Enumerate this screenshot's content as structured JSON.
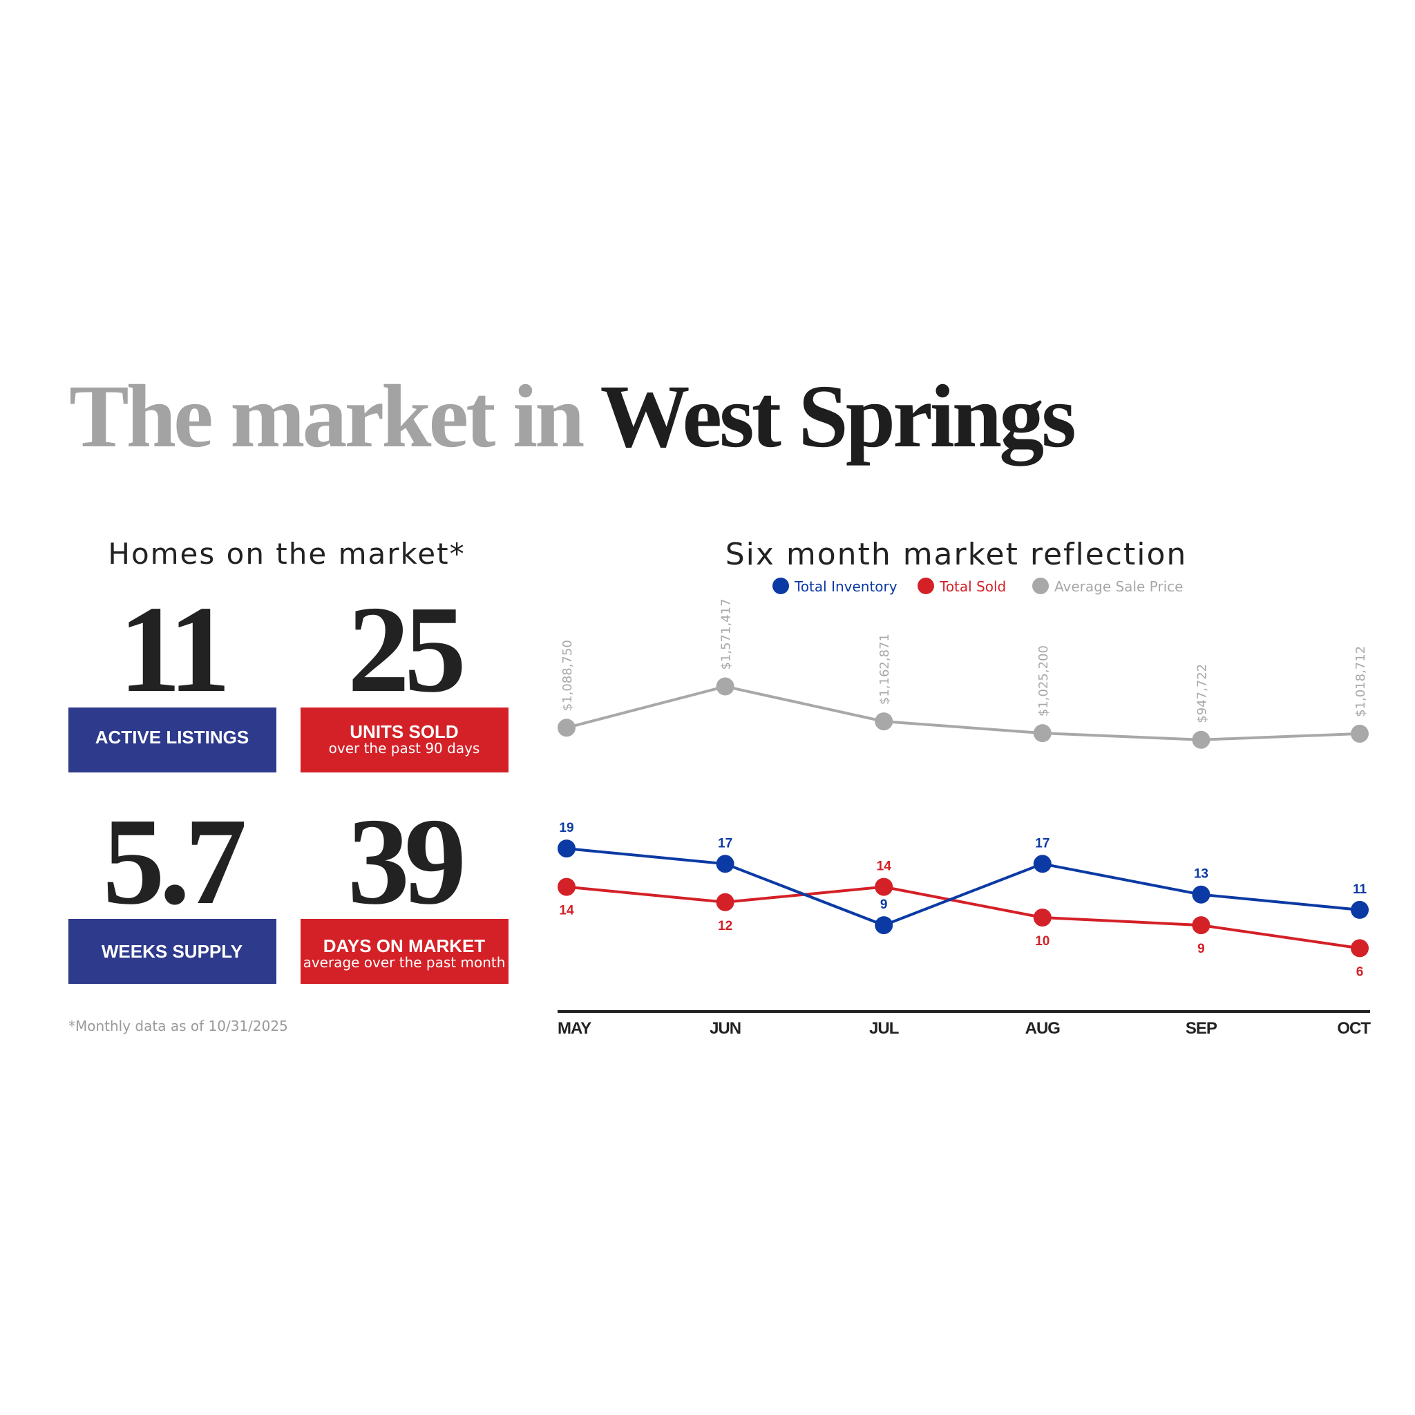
{
  "title": {
    "lead": "The market in",
    "place": "West Springs"
  },
  "stats": {
    "heading": "Homes on the market*",
    "cards": [
      {
        "value": 11,
        "label": "ACTIVE LISTINGS"
      },
      {
        "value": 25,
        "label": "UNITS SOLD",
        "sublabel": "over the past 90 days"
      },
      {
        "value": 5.7,
        "label": "WEEKS SUPPLY"
      },
      {
        "value": 39,
        "label": "DAYS ON MARKET",
        "sublabel": "average over the past month"
      }
    ],
    "footnote": "*Monthly data as of 10/31/2025"
  },
  "chart_data": {
    "type": "line",
    "title": "Six month market reflection",
    "categories": [
      "MAY",
      "JUN",
      "JUL",
      "AUG",
      "SEP",
      "OCT"
    ],
    "ylim": [
      0,
      20
    ],
    "y2lim": [
      800000,
      1600000
    ],
    "series": [
      {
        "name": "Total Inventory",
        "color": "#0b3aa4",
        "values": [
          19,
          17,
          9,
          17,
          13,
          11
        ]
      },
      {
        "name": "Total Sold",
        "color": "#d42027",
        "values": [
          14,
          12,
          14,
          10,
          9,
          6
        ]
      },
      {
        "name": "Average Sale Price",
        "color": "#a8a8a8",
        "axis": "y2",
        "values": [
          1088750,
          1571417,
          1162871,
          1025200,
          947722,
          1018712
        ],
        "value_labels": [
          "$1,088,750",
          "$1,571,417",
          "$1,162,871",
          "$1,025,200",
          "$947,722",
          "$1,018,712"
        ]
      }
    ]
  }
}
